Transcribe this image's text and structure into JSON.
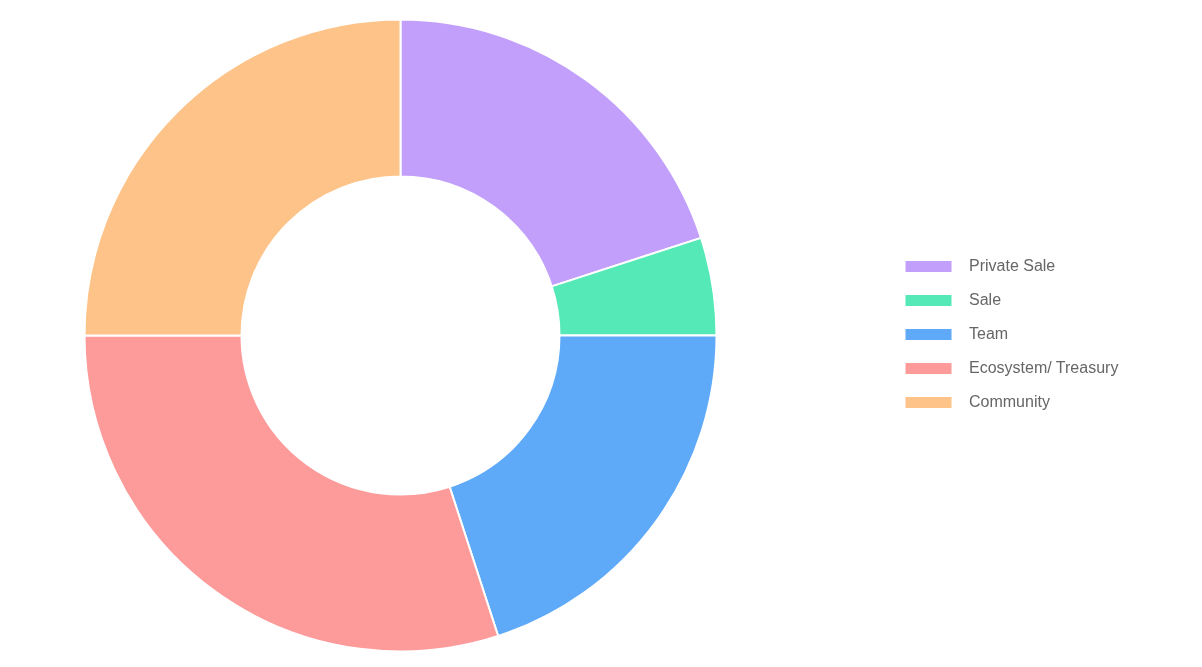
{
  "chart_data": {
    "type": "donut",
    "categories": [
      "Private Sale",
      "Sale",
      "Team",
      "Ecosystem/ Treasury",
      "Community"
    ],
    "values": [
      20,
      5,
      20,
      30,
      25
    ],
    "colors": [
      "#c19ffa",
      "#55e9b8",
      "#5ea9f8",
      "#fd9a9a",
      "#fdc388"
    ],
    "legend": "right"
  }
}
